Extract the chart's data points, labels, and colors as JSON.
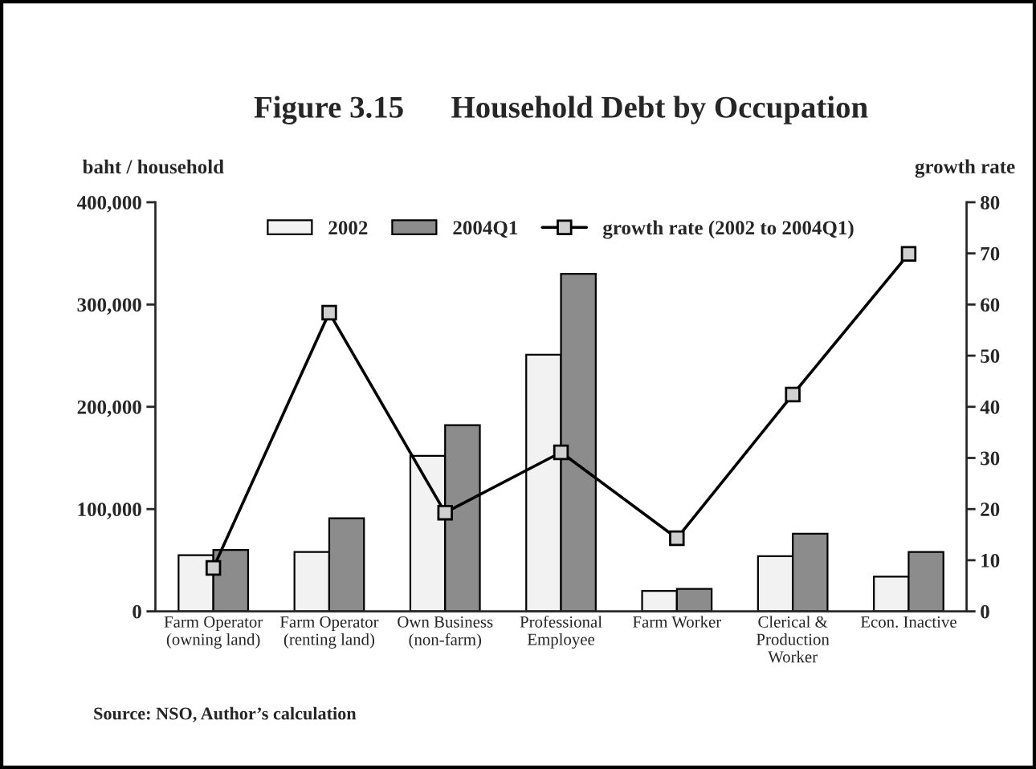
{
  "chart_data": {
    "type": "bar",
    "title": "Figure 3.15      Household Debt by Occupation",
    "ylabel": "baht / household",
    "y2label": "growth rate",
    "categories": [
      "Farm Operator\n(owning land)",
      "Farm Operator\n(renting land)",
      "Own Business\n(non-farm)",
      "Professional\nEmployee",
      "Farm Worker",
      "Clerical &\nProduction\nWorker",
      "Econ. Inactive"
    ],
    "series": [
      {
        "name": "2002",
        "color": "#f2f2f2",
        "values": [
          55000,
          58000,
          152000,
          251000,
          20000,
          54000,
          34000
        ]
      },
      {
        "name": "2004Q1",
        "color": "#8c8c8c",
        "values": [
          60000,
          91000,
          182000,
          330000,
          22000,
          76000,
          58000
        ]
      },
      {
        "name": "growth rate (2002 to 2004Q1)",
        "type": "line",
        "axis": "y2",
        "color": "#000000",
        "marker": "square",
        "values": [
          8.5,
          58.4,
          19.3,
          31.1,
          14.3,
          42.4,
          69.9
        ]
      }
    ],
    "ylim": [
      0,
      400000
    ],
    "yticks": [
      {
        "value": 0,
        "label": "0"
      },
      {
        "value": 100000,
        "label": "100,000"
      },
      {
        "value": 200000,
        "label": "200,000"
      },
      {
        "value": 300000,
        "label": "300,000"
      },
      {
        "value": 400000,
        "label": "400,000"
      }
    ],
    "y2lim": [
      0,
      80
    ],
    "y2ticks": [
      0,
      10,
      20,
      30,
      40,
      50,
      60,
      70,
      80
    ],
    "legend": "top",
    "grid": false,
    "annotations": [
      "Source: NSO, Author’s calculation"
    ]
  }
}
